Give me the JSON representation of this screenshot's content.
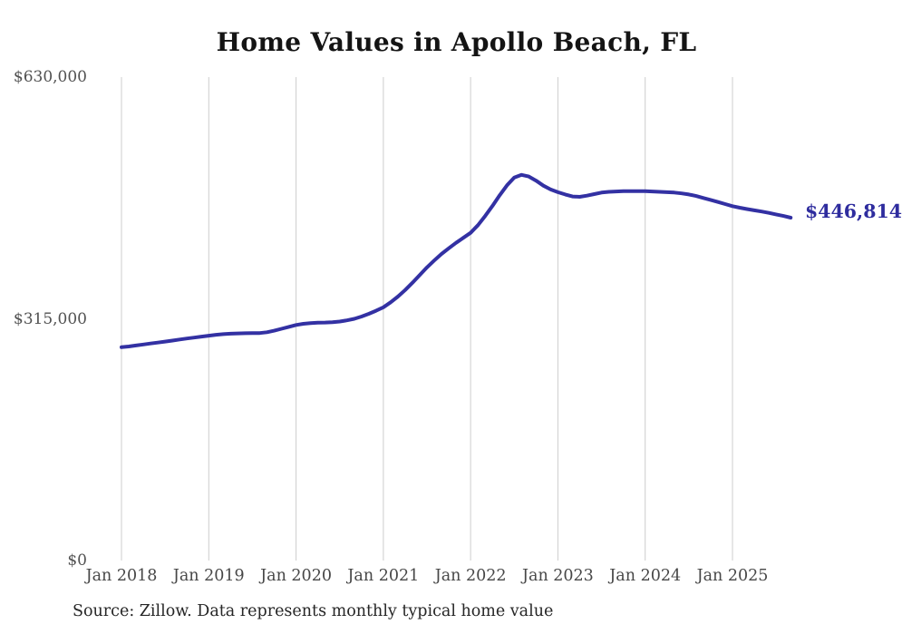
{
  "title": "Home Values in Apollo Beach, FL",
  "source_note": "Source: Zillow. Data represents monthly typical home value",
  "colors": {
    "line": "#3331a3",
    "end_label": "#2e2c9e",
    "grid": "#cdcdcd",
    "title": "#141414",
    "axis_label": "#4d4d4d",
    "background": "#ffffff"
  },
  "chart_data": {
    "type": "line",
    "title": "Home Values in Apollo Beach, FL",
    "xlabel": "",
    "ylabel": "",
    "ylim": [
      0,
      630000
    ],
    "grid": "vertical-only",
    "legend": "none",
    "x_unit": "month",
    "x_start": "2018-01",
    "x_end": "2025-09",
    "x_interval_months": 1,
    "y_ticks": [
      {
        "label": "$0",
        "value": 0
      },
      {
        "label": "$315,000",
        "value": 315000
      },
      {
        "label": "$630,000",
        "value": 630000
      }
    ],
    "x_ticks": [
      {
        "label": "Jan 2018",
        "month_index": 0
      },
      {
        "label": "Jan 2019",
        "month_index": 12
      },
      {
        "label": "Jan 2020",
        "month_index": 24
      },
      {
        "label": "Jan 2021",
        "month_index": 36
      },
      {
        "label": "Jan 2022",
        "month_index": 48
      },
      {
        "label": "Jan 2023",
        "month_index": 60
      },
      {
        "label": "Jan 2024",
        "month_index": 72
      },
      {
        "label": "Jan 2025",
        "month_index": 84
      }
    ],
    "end_label": "$446,814",
    "end_value": 446814,
    "series": [
      {
        "name": "Monthly typical home value",
        "values": [
          278000,
          279000,
          280200,
          281500,
          282800,
          284000,
          285300,
          286600,
          288000,
          289300,
          290500,
          291800,
          293000,
          294200,
          295000,
          295600,
          296000,
          296200,
          296300,
          296500,
          297500,
          299500,
          302000,
          304500,
          307000,
          308500,
          309500,
          310000,
          310200,
          310500,
          311500,
          313000,
          315000,
          318000,
          321500,
          325500,
          330000,
          336500,
          344000,
          352500,
          362000,
          372000,
          382000,
          391000,
          399500,
          407000,
          414000,
          420500,
          427000,
          437000,
          449000,
          462000,
          476000,
          489000,
          499000,
          502600,
          500500,
          495000,
          488500,
          483500,
          480000,
          477000,
          474500,
          474000,
          475500,
          477500,
          479500,
          480500,
          481000,
          481300,
          481300,
          481300,
          481300,
          481000,
          480500,
          480000,
          479500,
          478500,
          477000,
          475000,
          472500,
          470000,
          467200,
          464500,
          461800,
          459800,
          458000,
          456400,
          454800,
          453000,
          451000,
          449000,
          446814
        ]
      }
    ]
  }
}
